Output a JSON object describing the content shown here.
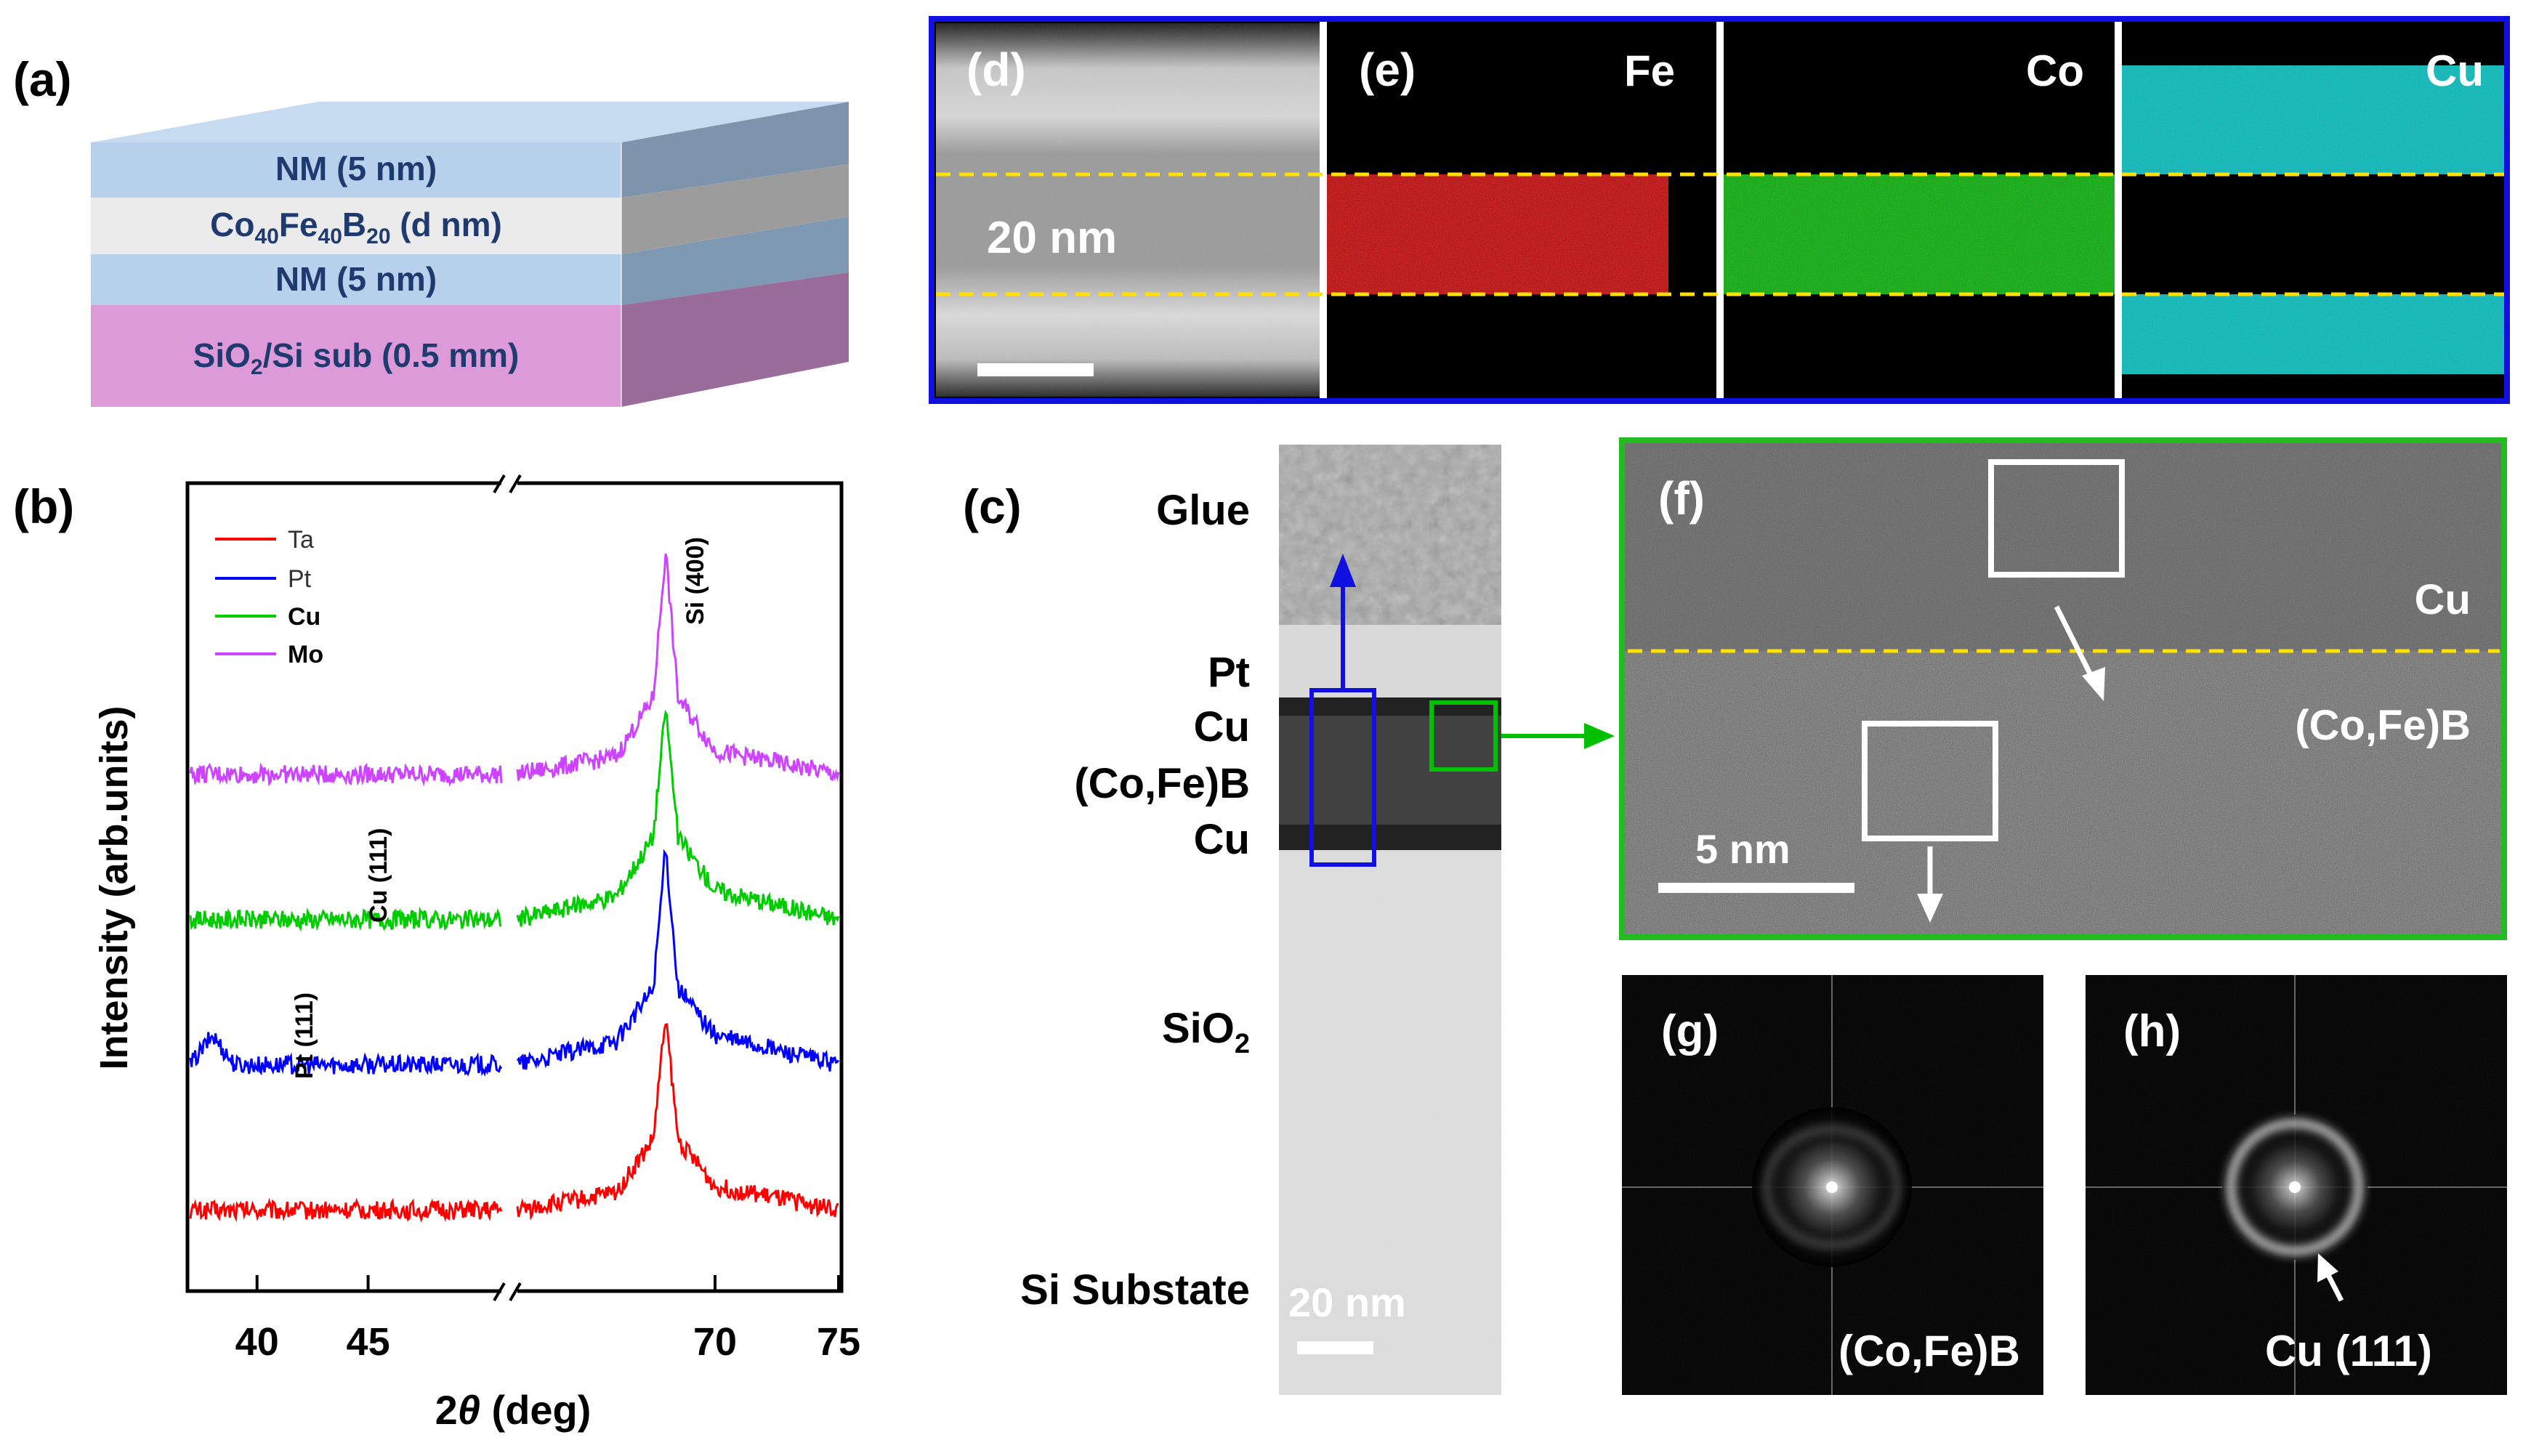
{
  "panel_a": {
    "label": "(a)",
    "layers": [
      {
        "name": "NM (5 nm)"
      },
      {
        "name_main": "Co",
        "sub1": "40",
        "name_mid": "Fe",
        "sub2": "40",
        "name_b": "B",
        "sub3": "20",
        "name_tail": " (d nm)"
      },
      {
        "name": "NM (5 nm)"
      },
      {
        "name_main": "SiO",
        "sub1": "2",
        "name_tail": "/Si sub (0.5 mm)"
      }
    ],
    "colors": {
      "nm": "#b7d1ec",
      "cofeb": "#ebebeb",
      "sub": "#dc9ad8",
      "text": "#1f3a6e"
    }
  },
  "panel_b": {
    "label": "(b)",
    "ylabel": "Intensity (arb.units)",
    "xlabel_theta": "θ",
    "xlabel_pre": "2",
    "xlabel_post": " (deg)",
    "peak_labels": [
      "Si (400)",
      "Cu (111)",
      "Pt (111)"
    ]
  },
  "chart_data": {
    "type": "line",
    "title": "",
    "xlabel": "2θ (deg)",
    "ylabel": "Intensity (arb.units)",
    "broken_axis": true,
    "x_segments": [
      [
        37,
        51
      ],
      [
        62,
        75
      ]
    ],
    "xticks": [
      40,
      45,
      70,
      75
    ],
    "tick_labels": [
      "40",
      "45",
      "70",
      "75"
    ],
    "series": [
      {
        "name": "Ta",
        "color": "#ff0000",
        "offset": 0,
        "points": [
          [
            37,
            0.3
          ],
          [
            51,
            0.3
          ],
          [
            62,
            0.3
          ],
          [
            66,
            0.6
          ],
          [
            67.5,
            1.5
          ],
          [
            68,
            3.6
          ],
          [
            68.5,
            1.5
          ],
          [
            70,
            0.7
          ],
          [
            75,
            0.3
          ]
        ]
      },
      {
        "name": "Pt",
        "color": "#0000ff",
        "offset": 1,
        "points": [
          [
            37,
            0.3
          ],
          [
            38,
            0.8
          ],
          [
            39,
            0.3
          ],
          [
            51,
            0.3
          ],
          [
            62,
            0.3
          ],
          [
            66,
            0.7
          ],
          [
            67.5,
            1.6
          ],
          [
            68,
            4.0
          ],
          [
            68.5,
            1.6
          ],
          [
            70,
            0.8
          ],
          [
            75,
            0.3
          ]
        ]
      },
      {
        "name": "Cu",
        "color": "#00cc00",
        "offset": 2,
        "points": [
          [
            37,
            0.3
          ],
          [
            51,
            0.3
          ],
          [
            62,
            0.3
          ],
          [
            66,
            0.7
          ],
          [
            67.5,
            1.7
          ],
          [
            68,
            3.9
          ],
          [
            68.5,
            1.7
          ],
          [
            70,
            0.8
          ],
          [
            75,
            0.3
          ]
        ]
      },
      {
        "name": "Mo",
        "color": "#cc44ff",
        "offset": 3,
        "points": [
          [
            37,
            0.3
          ],
          [
            51,
            0.3
          ],
          [
            62,
            0.3
          ],
          [
            66,
            0.6
          ],
          [
            67.5,
            1.6
          ],
          [
            68,
            4.1
          ],
          [
            68.5,
            1.6
          ],
          [
            70,
            0.7
          ],
          [
            75,
            0.3
          ]
        ]
      }
    ],
    "legend": [
      "Ta",
      "Pt",
      "Cu",
      "Mo"
    ],
    "annotations": [
      "Si (400)",
      "Cu (111)",
      "Pt (111)"
    ]
  },
  "panel_c": {
    "label": "(c)",
    "layer_labels": [
      "Glue",
      "Pt",
      "Cu",
      "(Co,Fe)B",
      "Cu"
    ],
    "sio2_main": "SiO",
    "sio2_sub": "2",
    "substrate": "Si Substate",
    "scale": "20 nm"
  },
  "panel_de": {
    "label_d": "(d)",
    "label_e": "(e)",
    "scale": "20 nm",
    "elements": [
      {
        "name": "Fe",
        "color": "#e00000"
      },
      {
        "name": "Co",
        "color": "#00c800"
      },
      {
        "name": "Cu",
        "color": "#00d0d0"
      }
    ]
  },
  "panel_f": {
    "label": "(f)",
    "top_layer": "Cu",
    "bottom_layer": "(Co,Fe)B",
    "scale": "5 nm"
  },
  "panel_g": {
    "label": "(g)",
    "caption": "(Co,Fe)B"
  },
  "panel_h": {
    "label": "(h)",
    "caption": "Cu (111)"
  }
}
